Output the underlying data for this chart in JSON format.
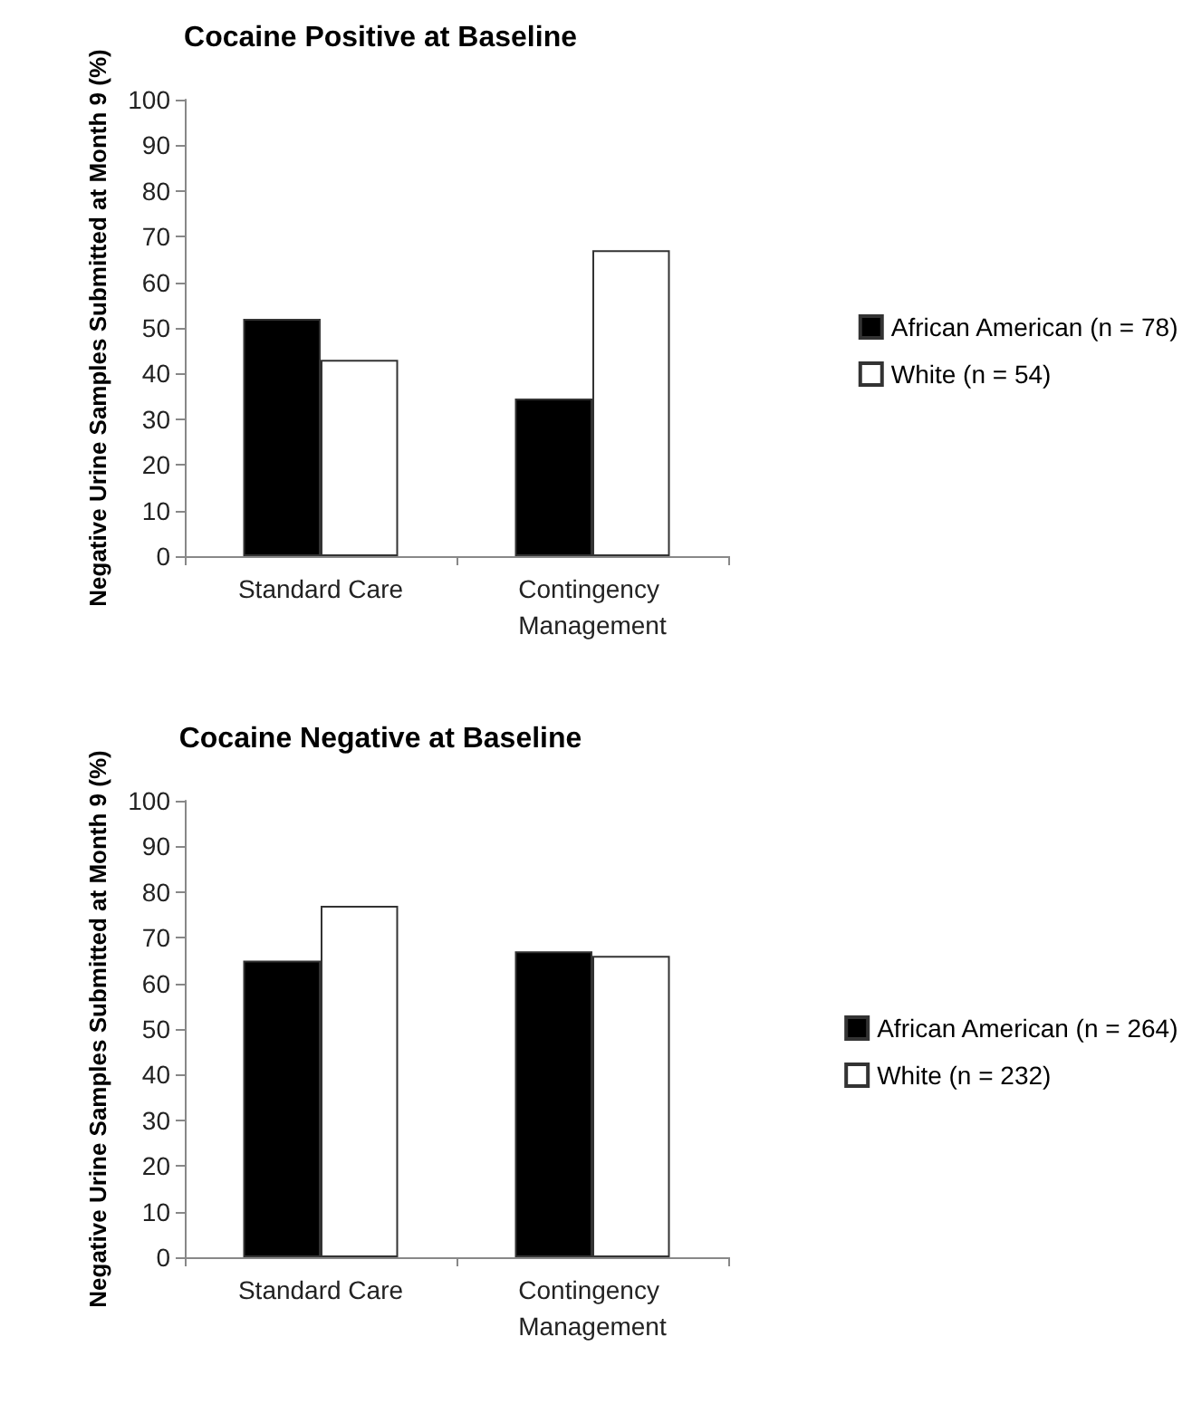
{
  "chart_data": [
    {
      "type": "bar",
      "title": "Cocaine Positive at Baseline",
      "ylabel": "Negative Urine Samples Submitted at Month 9 (%)",
      "categories": [
        "Standard Care",
        "Contingency Management"
      ],
      "series": [
        {
          "name": "African American (n = 78)",
          "color": "#000000",
          "values": [
            52,
            34.5
          ]
        },
        {
          "name": "White (n = 54)",
          "color": "#ffffff",
          "values": [
            43,
            67
          ]
        }
      ],
      "ylim": [
        0,
        100
      ],
      "yticks": [
        0,
        10,
        20,
        30,
        40,
        50,
        60,
        70,
        80,
        90,
        100
      ],
      "grid": false,
      "legend": "right"
    },
    {
      "type": "bar",
      "title": "Cocaine Negative at Baseline",
      "ylabel": "Negative Urine Samples Submitted at Month 9 (%)",
      "categories": [
        "Standard Care",
        "Contingency Management"
      ],
      "series": [
        {
          "name": "African American (n = 264)",
          "color": "#000000",
          "values": [
            65,
            67
          ]
        },
        {
          "name": "White (n = 232)",
          "color": "#ffffff",
          "values": [
            77,
            66
          ]
        }
      ],
      "ylim": [
        0,
        100
      ],
      "yticks": [
        0,
        10,
        20,
        30,
        40,
        50,
        60,
        70,
        80,
        90,
        100
      ],
      "grid": false,
      "legend": "right"
    }
  ]
}
